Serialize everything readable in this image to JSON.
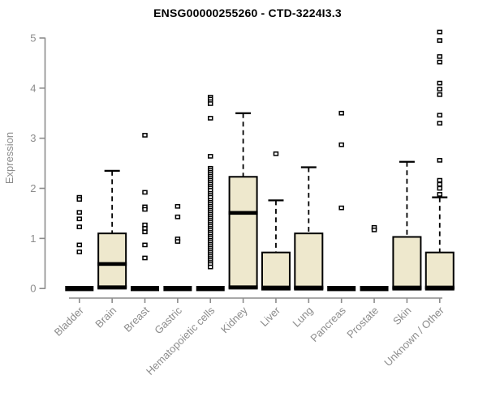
{
  "title": "ENSG00000255260 - CTD-3224I3.3",
  "chart_data": {
    "type": "boxplot",
    "title": "ENSG00000255260 - CTD-3224I3.3",
    "ylabel": "Expression",
    "xlabel": "",
    "ylim": [
      0,
      5
    ],
    "yticks": [
      0,
      1,
      2,
      3,
      4,
      5
    ],
    "grid": false,
    "legend": "none",
    "box_fill": "#EEE8CD",
    "box_border": "#000000",
    "axis_color": "#8C8C8C",
    "label_color": "#8C8C8C",
    "categories": [
      "Bladder",
      "Brain",
      "Breast",
      "Gastric",
      "Hematopoietic cells",
      "Kidney",
      "Liver",
      "Lung",
      "Pancreas",
      "Prostate",
      "Skin",
      "Unknown / Other"
    ],
    "series": [
      {
        "name": "Bladder",
        "q1": 0,
        "median": 0,
        "q3": 0,
        "whisker_low": 0,
        "whisker_high": 0,
        "outliers": [
          1.82,
          1.78,
          1.52,
          1.39,
          1.23,
          0.87,
          0.73
        ]
      },
      {
        "name": "Brain",
        "q1": 0.02,
        "median": 0.49,
        "q3": 1.1,
        "whisker_low": 0,
        "whisker_high": 2.35,
        "outliers": []
      },
      {
        "name": "Breast",
        "q1": 0,
        "median": 0,
        "q3": 0,
        "whisker_low": 0,
        "whisker_high": 0,
        "outliers": [
          3.06,
          1.92,
          1.63,
          1.58,
          1.27,
          1.2,
          1.13,
          0.87,
          0.61
        ]
      },
      {
        "name": "Gastric",
        "q1": 0,
        "median": 0,
        "q3": 0,
        "whisker_low": 0,
        "whisker_high": 0,
        "outliers": [
          1.64,
          1.43,
          0.99,
          0.94
        ]
      },
      {
        "name": "Hematopoietic cells",
        "q1": 0,
        "median": 0,
        "q3": 0,
        "whisker_low": 0,
        "whisker_high": 0,
        "outliers": [
          3.82,
          3.78,
          3.73,
          3.69,
          3.4,
          2.64,
          2.4,
          2.36,
          2.32,
          2.28,
          2.24,
          2.2,
          2.16,
          2.12,
          2.08,
          2.04,
          2.0,
          1.96,
          1.9,
          1.86,
          1.82,
          1.76,
          1.72,
          1.68,
          1.64,
          1.6,
          1.56,
          1.52,
          1.48,
          1.44,
          1.4,
          1.36,
          1.32,
          1.28,
          1.24,
          1.2,
          1.16,
          1.12,
          1.08,
          1.04,
          1.0,
          0.96,
          0.92,
          0.88,
          0.84,
          0.8,
          0.76,
          0.72,
          0.68,
          0.64,
          0.6,
          0.56,
          0.52,
          0.48,
          0.43
        ]
      },
      {
        "name": "Kidney",
        "q1": 0.02,
        "median": 1.51,
        "q3": 2.23,
        "whisker_low": 0,
        "whisker_high": 3.5,
        "outliers": []
      },
      {
        "name": "Liver",
        "q1": 0,
        "median": 0.02,
        "q3": 0.72,
        "whisker_low": 0,
        "whisker_high": 1.76,
        "outliers": [
          2.69
        ]
      },
      {
        "name": "Lung",
        "q1": 0,
        "median": 0.02,
        "q3": 1.1,
        "whisker_low": 0,
        "whisker_high": 2.42,
        "outliers": []
      },
      {
        "name": "Pancreas",
        "q1": 0,
        "median": 0,
        "q3": 0,
        "whisker_low": 0,
        "whisker_high": 0,
        "outliers": [
          3.5,
          2.87,
          1.61
        ]
      },
      {
        "name": "Prostate",
        "q1": 0,
        "median": 0,
        "q3": 0,
        "whisker_low": 0,
        "whisker_high": 0,
        "outliers": [
          1.22,
          1.17
        ]
      },
      {
        "name": "Skin",
        "q1": 0,
        "median": 0.02,
        "q3": 1.03,
        "whisker_low": 0,
        "whisker_high": 2.53,
        "outliers": []
      },
      {
        "name": "Unknown / Other",
        "q1": 0,
        "median": 0.02,
        "q3": 0.72,
        "whisker_low": 0,
        "whisker_high": 1.82,
        "outliers": [
          5.12,
          4.95,
          4.63,
          4.52,
          4.1,
          3.98,
          3.87,
          3.46,
          3.3,
          2.56,
          2.16,
          2.08,
          2.0,
          1.88
        ]
      }
    ]
  }
}
